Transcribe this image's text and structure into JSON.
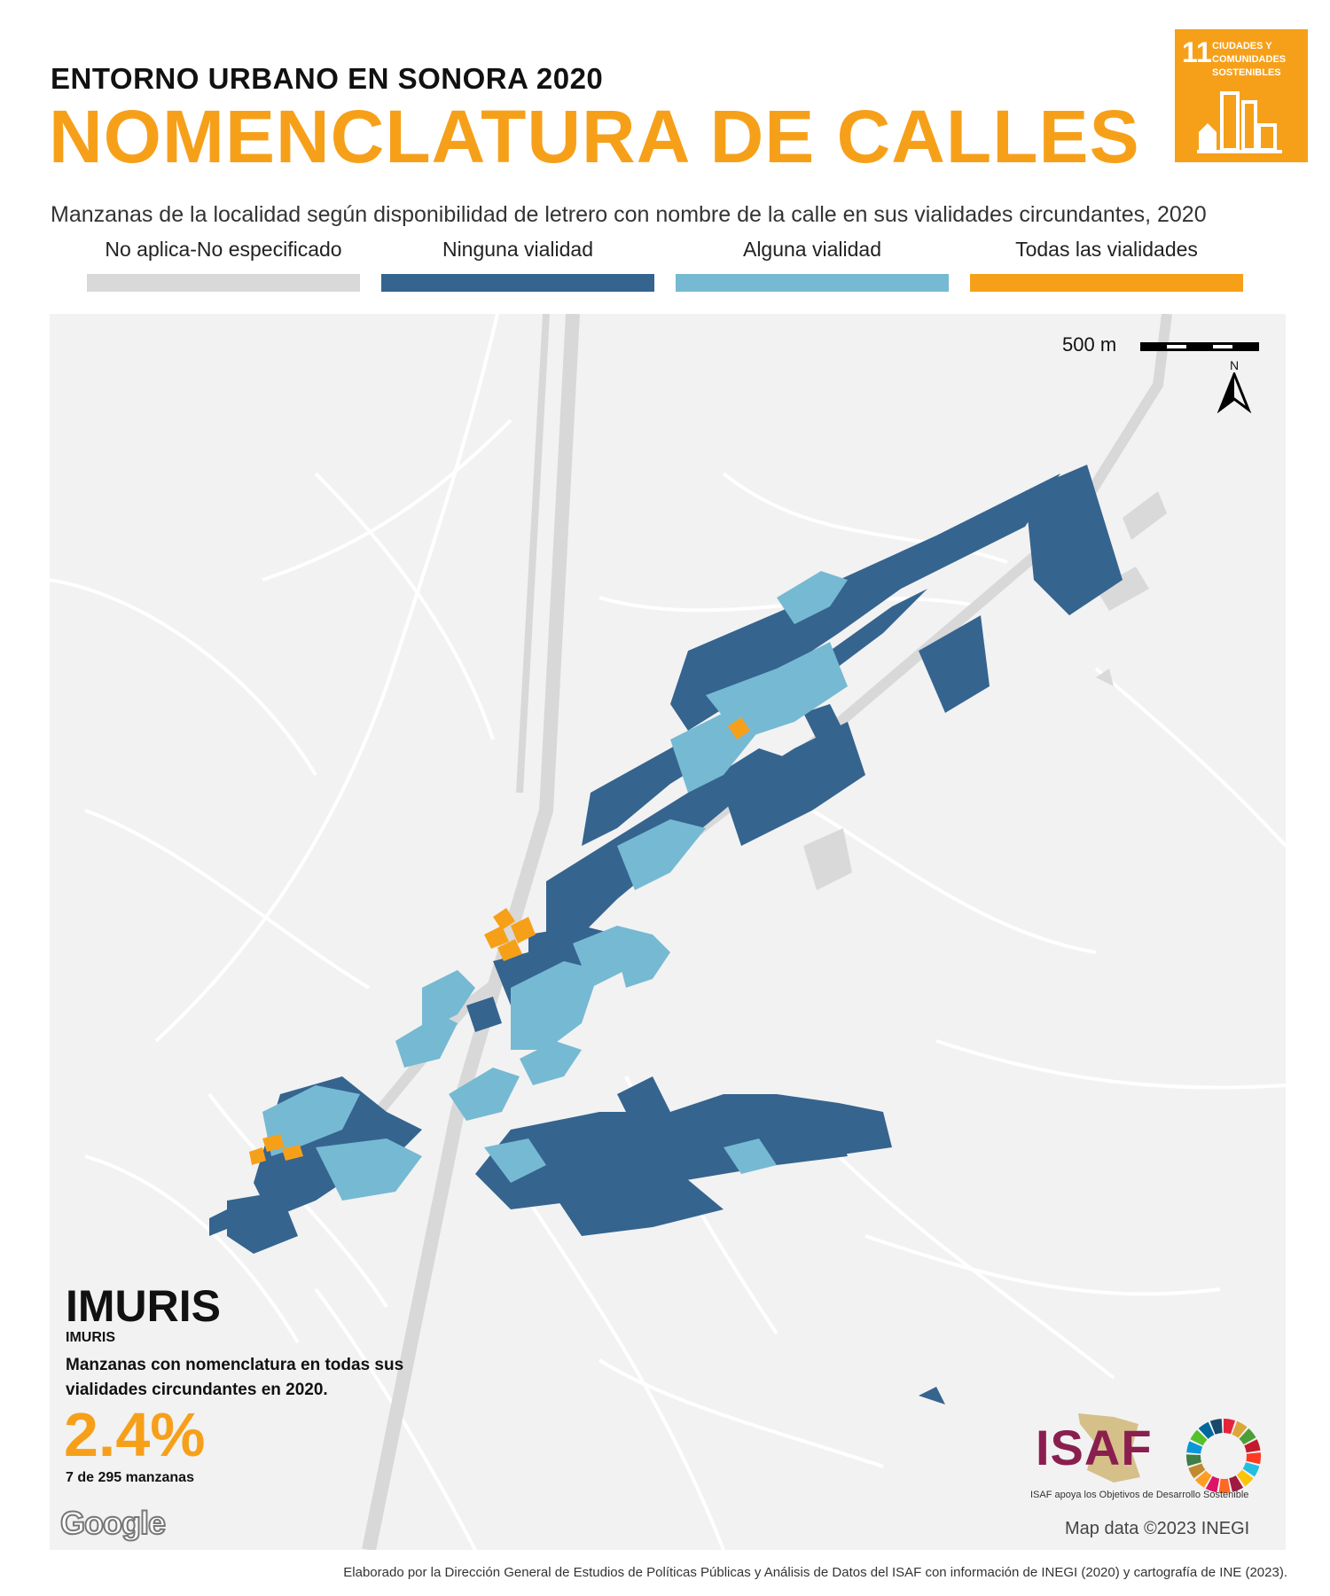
{
  "header": {
    "supertitle": "ENTORNO URBANO EN SONORA 2020",
    "title": "NOMENCLATURA DE CALLES",
    "subtitle": "Manzanas de la localidad según disponibilidad de letrero con nombre de la calle en sus vialidades circundantes, 2020"
  },
  "ods_badge": {
    "number": "11",
    "label": "CIUDADES Y COMUNIDADES SOSTENIBLES",
    "color": "#f6a01a"
  },
  "legend": [
    {
      "label": "No aplica-No especificado",
      "color": "#d9d9d9"
    },
    {
      "label": "Ninguna vialidad",
      "color": "#35648f"
    },
    {
      "label": "Alguna vialidad",
      "color": "#76b9d3"
    },
    {
      "label": "Todas las vialidades",
      "color": "#f6a01a"
    }
  ],
  "map": {
    "scale_label": "500 m",
    "north_label": "N",
    "locality_title": "IMURIS",
    "locality_subtitle": "IMURIS",
    "description": "Manzanas con nomenclatura en todas sus vialidades circundantes en 2020.",
    "percentage": "2.4%",
    "count": "7 de 295 manzanas",
    "google_mark": "Google",
    "attribution": "Map data ©2023 INEGI"
  },
  "isaf": {
    "logo_text": "ISAF",
    "caption": "ISAF apoya los Objetivos de Desarrollo Sostenible"
  },
  "footer": "Elaborado por la Dirección General de Estudios de Políticas Públicas y Análisis de Datos del ISAF con información de INEGI (2020) y cartografía de INE (2023)."
}
